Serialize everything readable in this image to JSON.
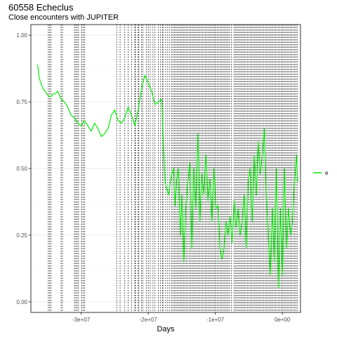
{
  "header": {
    "title": "60558 Echeclus",
    "subtitle": "Close encounters with JUPITER"
  },
  "colors": {
    "series": "#00ee00",
    "encounter_lines": "#000000",
    "grid": "#ebebeb",
    "panel_border": "#333333"
  },
  "chart_data": {
    "type": "line",
    "title": "60558 Echeclus",
    "subtitle": "Close encounters with JUPITER",
    "xlabel": "Days",
    "ylabel": "",
    "xlim": [
      -37500000,
      2700000
    ],
    "ylim": [
      -0.04,
      1.04
    ],
    "x_ticks": [
      {
        "value": -30000000,
        "label": "-3e+07"
      },
      {
        "value": -20000000,
        "label": "-2e+07"
      },
      {
        "value": -10000000,
        "label": "-1e+07"
      },
      {
        "value": 0,
        "label": "0e+00"
      }
    ],
    "y_ticks": [
      {
        "value": 0,
        "label": "0.00"
      },
      {
        "value": 0.25,
        "label": "0.25"
      },
      {
        "value": 0.5,
        "label": "0.50"
      },
      {
        "value": 0.75,
        "label": "0.75"
      },
      {
        "value": 1.0,
        "label": "1.00"
      }
    ],
    "grid": true,
    "legend_position": "right",
    "series": [
      {
        "name": "e",
        "x": [
          -36500000,
          -36250000,
          -36000000,
          -35700000,
          -35400000,
          -35100000,
          -34800000,
          -34500000,
          -34200000,
          -33900000,
          -33500000,
          -33000000,
          -32500000,
          -32000000,
          -31500000,
          -31000000,
          -30500000,
          -30000000,
          -29500000,
          -29000000,
          -28500000,
          -28000000,
          -27500000,
          -27000000,
          -26500000,
          -26000000,
          -25500000,
          -25000000,
          -24500000,
          -24000000,
          -23500000,
          -23000000,
          -22500000,
          -22000000,
          -21500000,
          -21000000,
          -20500000,
          -20000000,
          -19500000,
          -19000000,
          -18500000,
          -18000000,
          -17500000,
          -17000000,
          -16500000,
          -16200000,
          -16000000,
          -15800000,
          -15500000,
          -15200000,
          -15000000,
          -14700000,
          -14400000,
          -14100000,
          -13800000,
          -13500000,
          -13200000,
          -12900000,
          -12600000,
          -12300000,
          -12000000,
          -11700000,
          -11400000,
          -11100000,
          -10800000,
          -10500000,
          -10200000,
          -9900000,
          -9600000,
          -9300000,
          -9000000,
          -8700000,
          -8400000,
          -8100000,
          -7800000,
          -7500000,
          -7200000,
          -6900000,
          -6600000,
          -6300000,
          -6000000,
          -5700000,
          -5400000,
          -5100000,
          -4800000,
          -4500000,
          -4200000,
          -3900000,
          -3600000,
          -3300000,
          -3000000,
          -2700000,
          -2400000,
          -2100000,
          -1800000,
          -1500000,
          -1200000,
          -900000,
          -600000,
          -300000,
          0,
          300000,
          600000,
          900000,
          1200000,
          1500000,
          1800000,
          2100000,
          2300000
        ],
        "values": [
          0.89,
          0.84,
          0.82,
          0.8,
          0.79,
          0.78,
          0.77,
          0.77,
          0.78,
          0.78,
          0.79,
          0.76,
          0.75,
          0.73,
          0.7,
          0.69,
          0.67,
          0.66,
          0.68,
          0.66,
          0.64,
          0.67,
          0.65,
          0.62,
          0.63,
          0.65,
          0.7,
          0.72,
          0.68,
          0.67,
          0.69,
          0.73,
          0.7,
          0.66,
          0.72,
          0.8,
          0.85,
          0.82,
          0.79,
          0.74,
          0.75,
          0.76,
          0.45,
          0.4,
          0.48,
          0.5,
          0.36,
          0.45,
          0.5,
          0.25,
          0.4,
          0.15,
          0.35,
          0.45,
          0.52,
          0.2,
          0.5,
          0.35,
          0.63,
          0.3,
          0.48,
          0.4,
          0.55,
          0.38,
          0.46,
          0.3,
          0.5,
          0.35,
          0.36,
          0.2,
          0.16,
          0.2,
          0.3,
          0.25,
          0.32,
          0.22,
          0.38,
          0.28,
          0.35,
          0.25,
          0.3,
          0.4,
          0.2,
          0.45,
          0.5,
          0.3,
          0.55,
          0.4,
          0.6,
          0.48,
          0.55,
          0.65,
          0.4,
          0.25,
          0.1,
          0.35,
          0.15,
          0.5,
          0.05,
          0.35,
          0.1,
          0.5,
          0.2,
          0.35,
          0.25,
          0.3,
          0.45,
          0.55,
          0.45
        ]
      }
    ],
    "encounters": [
      -34900000,
      -34700000,
      -34500000,
      -33000000,
      -32800000,
      -31000000,
      -30800000,
      -30600000,
      -30400000,
      -29900000,
      -29700000,
      -29500000,
      -24700000,
      -24200000,
      -23500000,
      -23000000,
      -22500000,
      -22000000,
      -21900000,
      -21500000,
      -21400000,
      -21000000,
      -20800000,
      -20300000,
      -20000000,
      -19700000,
      -19300000,
      -19000000,
      -18500000,
      -18200000,
      -17900000,
      -17800000,
      -17400000,
      -17100000,
      -16800000,
      -16500000,
      -16300000,
      -16100000,
      -15900000,
      -15700000,
      -15500000,
      -15300000,
      -15100000,
      -14900000,
      -14700000,
      -14500000,
      -14300000,
      -14100000,
      -13900000,
      -13700000,
      -13500000,
      -13300000,
      -13100000,
      -12900000,
      -12700000,
      -12500000,
      -12300000,
      -12100000,
      -11900000,
      -11700000,
      -11500000,
      -11300000,
      -11100000,
      -10900000,
      -10700000,
      -10500000,
      -10300000,
      -10100000,
      -9900000,
      -9700000,
      -9500000,
      -9300000,
      -9100000,
      -8900000,
      -8700000,
      -8500000,
      -8300000,
      -8100000,
      -7900000,
      -7600000,
      -7200000,
      -7000000,
      -6800000,
      -6600000,
      -6400000,
      -6200000,
      -6000000,
      -5800000,
      -5600000,
      -5400000,
      -5200000,
      -5000000,
      -4800000,
      -4600000,
      -4400000,
      -4200000,
      -4000000,
      -3800000,
      -3600000,
      -3400000,
      -3200000,
      -3000000,
      -2800000,
      -2600000,
      -2400000,
      -2200000,
      -2000000,
      -1800000,
      -1600000,
      -1400000,
      -1200000,
      -1000000,
      -800000,
      -600000,
      -400000,
      -200000,
      0,
      200000,
      400000,
      600000,
      800000,
      1000000,
      1200000,
      1400000,
      1600000,
      1800000,
      2000000,
      2200000
    ]
  }
}
